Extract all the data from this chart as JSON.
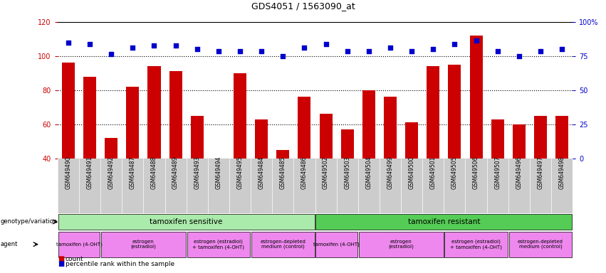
{
  "title": "GDS4051 / 1563090_at",
  "samples": [
    "GSM649490",
    "GSM649491",
    "GSM649492",
    "GSM649487",
    "GSM649488",
    "GSM649489",
    "GSM649493",
    "GSM649494",
    "GSM649495",
    "GSM649484",
    "GSM649485",
    "GSM649486",
    "GSM649502",
    "GSM649503",
    "GSM649504",
    "GSM649499",
    "GSM649500",
    "GSM649501",
    "GSM649505",
    "GSM649506",
    "GSM649507",
    "GSM649496",
    "GSM649497",
    "GSM649498"
  ],
  "counts": [
    96,
    88,
    52,
    82,
    94,
    91,
    65,
    40,
    90,
    63,
    45,
    76,
    66,
    57,
    80,
    76,
    61,
    94,
    95,
    112,
    63,
    60,
    65,
    65
  ],
  "percentiles": [
    108,
    107,
    101,
    105,
    106,
    106,
    104,
    103,
    103,
    103,
    100,
    105,
    107,
    103,
    103,
    105,
    103,
    104,
    107,
    109,
    103,
    100,
    103,
    104
  ],
  "ylim_left": [
    40,
    120
  ],
  "ylim_right": [
    0,
    100
  ],
  "yticks_left": [
    40,
    60,
    80,
    100,
    120
  ],
  "yticks_right": [
    0,
    25,
    50,
    75,
    100
  ],
  "bar_color": "#cc0000",
  "dot_color": "#0000cc",
  "plot_bg": "#ffffff",
  "genotype_groups": [
    {
      "label": "tamoxifen sensitive",
      "start": 0,
      "end": 11,
      "color": "#aaeaaa"
    },
    {
      "label": "tamoxifen resistant",
      "start": 12,
      "end": 23,
      "color": "#55cc55"
    }
  ],
  "agent_groups": [
    {
      "label": "tamoxifen (4-OHT)",
      "start": 0,
      "end": 1,
      "color": "#ee88ee"
    },
    {
      "label": "estrogen\n(estradiol)",
      "start": 2,
      "end": 5,
      "color": "#ee88ee"
    },
    {
      "label": "estrogen (estradiol)\n+ tamoxifen (4-OHT)",
      "start": 6,
      "end": 8,
      "color": "#ee88ee"
    },
    {
      "label": "estrogen-depleted\nmedium (control)",
      "start": 9,
      "end": 11,
      "color": "#ee88ee"
    },
    {
      "label": "tamoxifen (4-OHT)",
      "start": 12,
      "end": 13,
      "color": "#ee88ee"
    },
    {
      "label": "estrogen\n(estradiol)",
      "start": 14,
      "end": 17,
      "color": "#ee88ee"
    },
    {
      "label": "estrogen (estradiol)\n+ tamoxifen (4-OHT)",
      "start": 18,
      "end": 20,
      "color": "#ee88ee"
    },
    {
      "label": "estrogen-depleted\nmedium (control)",
      "start": 21,
      "end": 23,
      "color": "#ee88ee"
    }
  ],
  "bg_color": "#ffffff",
  "tick_bg": "#cccccc"
}
